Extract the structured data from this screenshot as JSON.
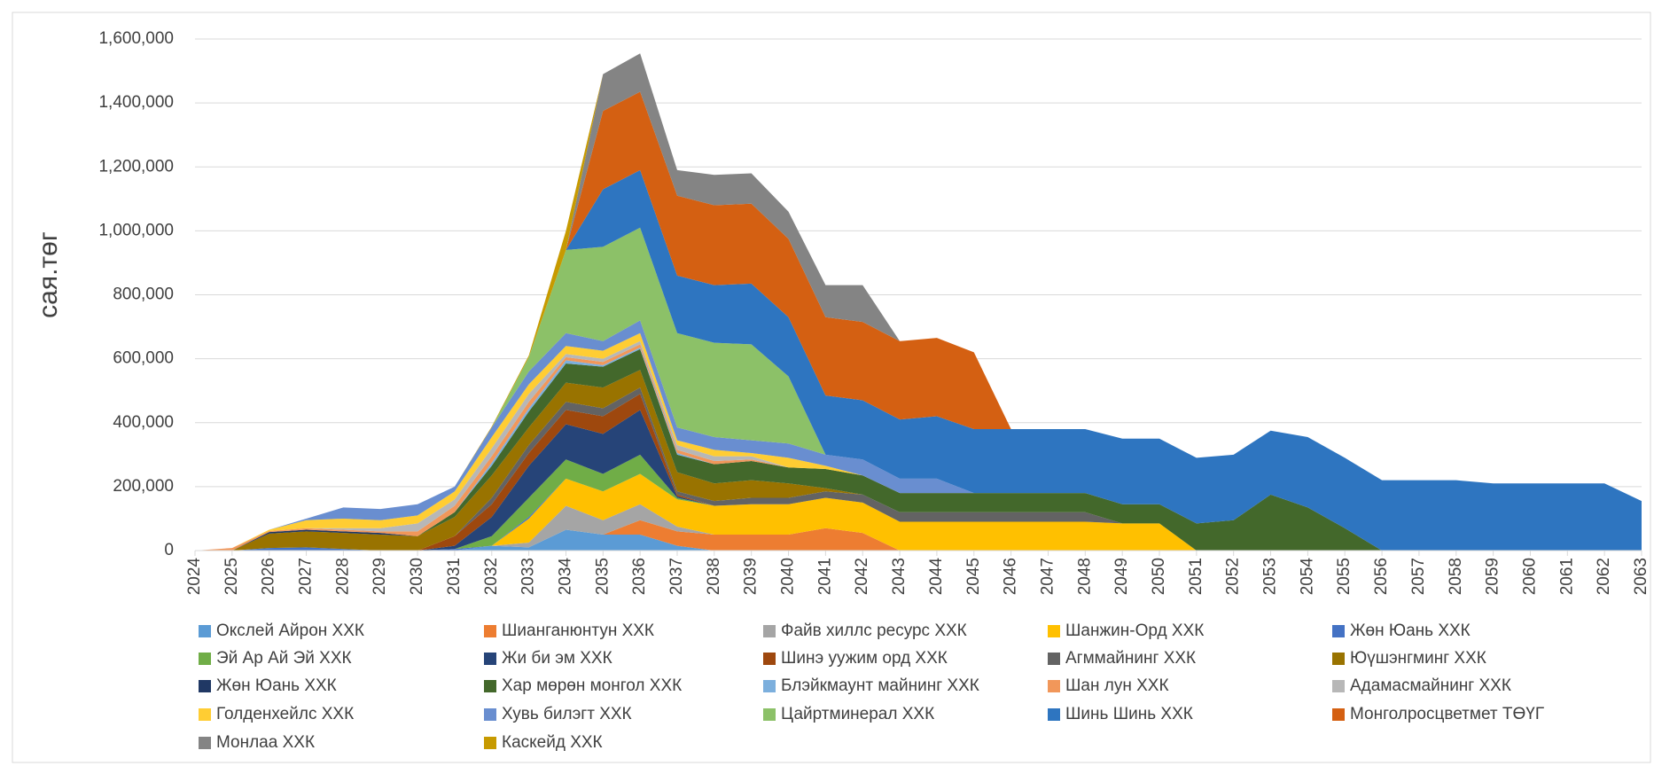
{
  "chart_data": {
    "type": "stacked_area",
    "y_label": "сая.төг",
    "categories": [
      "2024",
      "2025",
      "2026",
      "2027",
      "2028",
      "2029",
      "2030",
      "2031",
      "2032",
      "2033",
      "2034",
      "2035",
      "2036",
      "2037",
      "2038",
      "2039",
      "2040",
      "2041",
      "2042",
      "2043",
      "2044",
      "2045",
      "2046",
      "2047",
      "2048",
      "2049",
      "2050",
      "2051",
      "2052",
      "2053",
      "2054",
      "2055",
      "2056",
      "2057",
      "2058",
      "2059",
      "2060",
      "2061",
      "2062",
      "2063"
    ],
    "ylim": [
      0,
      1600000
    ],
    "yticks": [
      0,
      {
        "value": 200000,
        "label": "200,000"
      },
      {
        "value": 400000,
        "label": "400,000"
      },
      {
        "value": 600000,
        "label": "600,000"
      },
      {
        "value": 800000,
        "label": "800,000"
      },
      {
        "value": 1000000,
        "label": "1,000,000"
      },
      {
        "value": 1200000,
        "label": "1,200,000"
      },
      {
        "value": 1400000,
        "label": "1,400,000"
      },
      {
        "value": 1600000,
        "label": "1,600,000"
      }
    ],
    "grid": true,
    "legend": "bottom",
    "series": [
      {
        "name": "Окслей Айрон ХХК",
        "color": "#5b9bd5",
        "values": [
          0,
          0,
          0,
          0,
          0,
          0,
          0,
          0,
          15000,
          10000,
          65000,
          50000,
          50000,
          15000,
          0,
          0,
          0,
          0,
          0,
          0,
          0,
          0,
          0,
          0,
          0,
          0,
          0,
          0,
          0,
          0,
          0,
          0,
          0,
          0,
          0,
          0,
          0,
          0,
          0,
          0
        ]
      },
      {
        "name": "Шианганюнтун ХХК",
        "color": "#ed7d31",
        "values": [
          0,
          0,
          0,
          0,
          0,
          0,
          0,
          0,
          0,
          0,
          0,
          0,
          45000,
          45000,
          50000,
          50000,
          50000,
          70000,
          55000,
          0,
          0,
          0,
          0,
          0,
          0,
          0,
          0,
          0,
          0,
          0,
          0,
          0,
          0,
          0,
          0,
          0,
          0,
          0,
          0,
          0
        ]
      },
      {
        "name": "Файв хиллс ресурс ХХК",
        "color": "#a5a5a5",
        "values": [
          0,
          0,
          0,
          0,
          0,
          0,
          0,
          0,
          0,
          15000,
          75000,
          45000,
          50000,
          15000,
          0,
          0,
          0,
          0,
          0,
          0,
          0,
          0,
          0,
          0,
          0,
          0,
          0,
          0,
          0,
          0,
          0,
          0,
          0,
          0,
          0,
          0,
          0,
          0,
          0,
          0
        ]
      },
      {
        "name": "Шанжин-Орд ХХК",
        "color": "#ffc000",
        "values": [
          0,
          0,
          0,
          0,
          0,
          0,
          0,
          0,
          0,
          75000,
          85000,
          90000,
          95000,
          85000,
          90000,
          95000,
          95000,
          95000,
          95000,
          90000,
          90000,
          90000,
          90000,
          90000,
          90000,
          85000,
          85000,
          0,
          0,
          0,
          0,
          0,
          0,
          0,
          0,
          0,
          0,
          0,
          0,
          0
        ]
      },
      {
        "name": "Жөн Юань ХХК",
        "color": "#4472c4",
        "values": [
          0,
          0,
          8000,
          10000,
          5000,
          0,
          0,
          5000,
          0,
          5000,
          0,
          0,
          0,
          0,
          0,
          0,
          0,
          0,
          0,
          0,
          0,
          0,
          0,
          0,
          0,
          0,
          0,
          0,
          0,
          0,
          0,
          0,
          0,
          0,
          0,
          0,
          0,
          0,
          0,
          0
        ]
      },
      {
        "name": "Эй Ар Ай Эй ХХК",
        "color": "#70ad47",
        "values": [
          0,
          0,
          0,
          0,
          0,
          0,
          0,
          0,
          30000,
          60000,
          60000,
          55000,
          60000,
          5000,
          0,
          0,
          0,
          0,
          0,
          0,
          0,
          0,
          0,
          0,
          0,
          0,
          0,
          0,
          0,
          0,
          0,
          0,
          0,
          0,
          0,
          0,
          0,
          0,
          0,
          0
        ]
      },
      {
        "name": "Жи би эм ХХК",
        "color": "#264478",
        "values": [
          0,
          0,
          0,
          0,
          0,
          0,
          0,
          10000,
          60000,
          100000,
          110000,
          125000,
          140000,
          5000,
          0,
          0,
          0,
          0,
          0,
          0,
          0,
          0,
          0,
          0,
          0,
          0,
          0,
          0,
          0,
          0,
          0,
          0,
          0,
          0,
          0,
          0,
          0,
          0,
          0,
          0
        ]
      },
      {
        "name": "Шинэ уужим орд ХХК",
        "color": "#9e480e",
        "values": [
          0,
          0,
          0,
          0,
          0,
          0,
          0,
          30000,
          40000,
          40000,
          45000,
          55000,
          50000,
          5000,
          0,
          0,
          0,
          0,
          0,
          0,
          0,
          0,
          0,
          0,
          0,
          0,
          0,
          0,
          0,
          0,
          0,
          0,
          0,
          0,
          0,
          0,
          0,
          0,
          0,
          0
        ]
      },
      {
        "name": "Агммайнинг ХХК",
        "color": "#636363",
        "values": [
          0,
          0,
          0,
          0,
          0,
          0,
          0,
          0,
          20000,
          25000,
          25000,
          25000,
          20000,
          10000,
          15000,
          20000,
          20000,
          20000,
          25000,
          30000,
          30000,
          30000,
          30000,
          30000,
          30000,
          0,
          0,
          0,
          0,
          0,
          0,
          0,
          0,
          0,
          0,
          0,
          0,
          0,
          0,
          0
        ]
      },
      {
        "name": "Юүшэнгминг ХХК",
        "color": "#997300",
        "values": [
          0,
          0,
          45000,
          50000,
          50000,
          50000,
          45000,
          60000,
          70000,
          55000,
          60000,
          65000,
          55000,
          60000,
          55000,
          55000,
          45000,
          10000,
          0,
          0,
          0,
          0,
          0,
          0,
          0,
          0,
          0,
          0,
          0,
          0,
          0,
          0,
          0,
          0,
          0,
          0,
          0,
          0,
          0,
          0
        ]
      },
      {
        "name": "Жөн Юань ХХК",
        "color": "#203864",
        "values": [
          0,
          0,
          5000,
          5000,
          5000,
          5000,
          0,
          0,
          0,
          0,
          0,
          0,
          0,
          0,
          0,
          0,
          0,
          0,
          0,
          0,
          0,
          0,
          0,
          0,
          0,
          0,
          0,
          0,
          0,
          0,
          0,
          0,
          0,
          0,
          0,
          0,
          0,
          0,
          0,
          0
        ]
      },
      {
        "name": "Хар мөрөн монгол ХХК",
        "color": "#43682b",
        "values": [
          0,
          0,
          0,
          0,
          0,
          0,
          0,
          15000,
          30000,
          50000,
          60000,
          65000,
          65000,
          55000,
          60000,
          60000,
          50000,
          60000,
          60000,
          60000,
          60000,
          60000,
          60000,
          60000,
          60000,
          60000,
          60000,
          85000,
          95000,
          175000,
          135000,
          70000,
          0,
          0,
          0,
          0,
          0,
          0,
          0,
          0
        ]
      },
      {
        "name": "Блэйкмаунт майнинг ХХК",
        "color": "#7cafdd",
        "values": [
          0,
          0,
          0,
          0,
          0,
          0,
          0,
          0,
          10000,
          10000,
          10000,
          5000,
          5000,
          5000,
          0,
          0,
          0,
          0,
          0,
          0,
          0,
          0,
          0,
          0,
          0,
          0,
          0,
          0,
          0,
          0,
          0,
          0,
          0,
          0,
          0,
          0,
          0,
          0,
          0,
          0
        ]
      },
      {
        "name": "Шан лун ХХК",
        "color": "#f1975a",
        "values": [
          0,
          8000,
          3000,
          5000,
          5000,
          5000,
          15000,
          20000,
          20000,
          20000,
          10000,
          10000,
          10000,
          10000,
          10000,
          5000,
          0,
          0,
          0,
          0,
          0,
          0,
          0,
          0,
          0,
          0,
          0,
          0,
          0,
          0,
          0,
          0,
          0,
          0,
          0,
          0,
          0,
          0,
          0,
          0
        ]
      },
      {
        "name": "Адамасмайнинг ХХК",
        "color": "#b7b7b7",
        "values": [
          0,
          0,
          0,
          0,
          5000,
          10000,
          25000,
          20000,
          25000,
          25000,
          10000,
          10000,
          10000,
          15000,
          15000,
          10000,
          0,
          0,
          0,
          0,
          0,
          0,
          0,
          0,
          0,
          0,
          0,
          0,
          0,
          0,
          0,
          0,
          0,
          0,
          0,
          0,
          0,
          0,
          0,
          0
        ]
      },
      {
        "name": "Голденхейлс ХХК",
        "color": "#ffcd33",
        "values": [
          0,
          0,
          4000,
          25000,
          30000,
          25000,
          25000,
          25000,
          35000,
          30000,
          25000,
          25000,
          25000,
          15000,
          20000,
          10000,
          30000,
          10000,
          0,
          0,
          0,
          0,
          0,
          0,
          0,
          0,
          0,
          0,
          0,
          0,
          0,
          0,
          0,
          0,
          0,
          0,
          0,
          0,
          0,
          0
        ]
      },
      {
        "name": "Хувь билэгт ХХК",
        "color": "#698ed0",
        "values": [
          0,
          0,
          0,
          5000,
          35000,
          35000,
          35000,
          15000,
          30000,
          40000,
          40000,
          30000,
          40000,
          40000,
          40000,
          40000,
          45000,
          35000,
          50000,
          45000,
          45000,
          0,
          0,
          0,
          0,
          0,
          0,
          0,
          0,
          0,
          0,
          0,
          0,
          0,
          0,
          0,
          0,
          0,
          0,
          0
        ]
      },
      {
        "name": "Цайртминерал ХХК",
        "color": "#8cc168",
        "values": [
          0,
          0,
          0,
          0,
          0,
          0,
          0,
          0,
          0,
          45000,
          260000,
          295000,
          290000,
          295000,
          295000,
          300000,
          210000,
          0,
          0,
          0,
          0,
          0,
          0,
          0,
          0,
          0,
          0,
          0,
          0,
          0,
          0,
          0,
          0,
          0,
          0,
          0,
          0,
          0,
          0,
          0
        ]
      },
      {
        "name": "Шинь Шинь ХХК",
        "color": "#2e75c0",
        "values": [
          0,
          0,
          0,
          0,
          0,
          0,
          0,
          0,
          0,
          0,
          0,
          180000,
          180000,
          180000,
          180000,
          190000,
          185000,
          185000,
          185000,
          185000,
          195000,
          200000,
          200000,
          200000,
          200000,
          205000,
          205000,
          205000,
          205000,
          200000,
          220000,
          220000,
          220000,
          220000,
          220000,
          210000,
          210000,
          210000,
          210000,
          155000
        ]
      },
      {
        "name": "Монголросцветмет ТӨҮГ",
        "color": "#d46012",
        "values": [
          0,
          0,
          0,
          0,
          0,
          0,
          0,
          0,
          0,
          0,
          0,
          245000,
          245000,
          250000,
          250000,
          250000,
          245000,
          245000,
          245000,
          245000,
          245000,
          240000,
          0,
          0,
          0,
          0,
          0,
          0,
          0,
          0,
          0,
          0,
          0,
          0,
          0,
          0,
          0,
          0,
          0,
          0
        ]
      },
      {
        "name": "Монлаа ХХК",
        "color": "#848484",
        "values": [
          0,
          0,
          0,
          0,
          0,
          0,
          0,
          0,
          0,
          0,
          0,
          115000,
          120000,
          80000,
          95000,
          95000,
          85000,
          100000,
          115000,
          0,
          0,
          0,
          0,
          0,
          0,
          0,
          0,
          0,
          0,
          0,
          0,
          0,
          0,
          0,
          0,
          0,
          0,
          0,
          0,
          0
        ]
      },
      {
        "name": "Каскейд ХХК",
        "color": "#c79a00",
        "values": [
          0,
          0,
          0,
          0,
          0,
          0,
          0,
          0,
          3000,
          5000,
          60000,
          0,
          0,
          0,
          0,
          0,
          0,
          0,
          0,
          0,
          0,
          0,
          0,
          0,
          0,
          0,
          0,
          0,
          0,
          0,
          0,
          0,
          0,
          0,
          0,
          0,
          0,
          0,
          0,
          0
        ]
      }
    ]
  }
}
